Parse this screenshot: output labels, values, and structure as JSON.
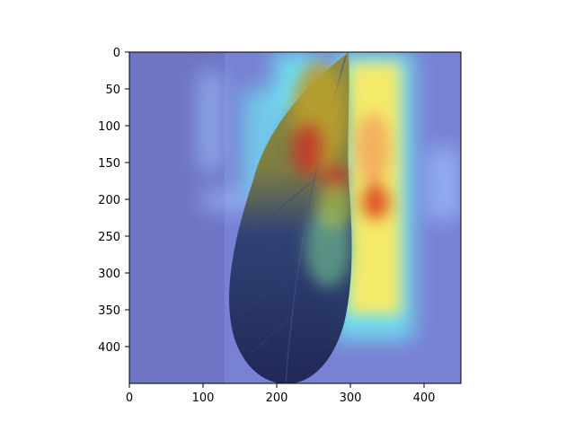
{
  "image": {
    "kind": "grad-cam heatmap overlay",
    "subject": "leaf",
    "colormap": "jet",
    "colors": {
      "background_blue": "#6f74c4",
      "leaf_dark": "#1f2a55",
      "hot_red": "#c0392b",
      "warm_yellow": "#f4ea6a",
      "cyan": "#6fe6f2"
    }
  },
  "axes": {
    "x": {
      "ticks": [
        "0",
        "100",
        "200",
        "300",
        "400"
      ],
      "range": [
        0,
        450
      ]
    },
    "y": {
      "ticks": [
        "0",
        "50",
        "100",
        "150",
        "200",
        "250",
        "300",
        "350",
        "400"
      ],
      "range": [
        0,
        450
      ],
      "inverted": true
    }
  }
}
